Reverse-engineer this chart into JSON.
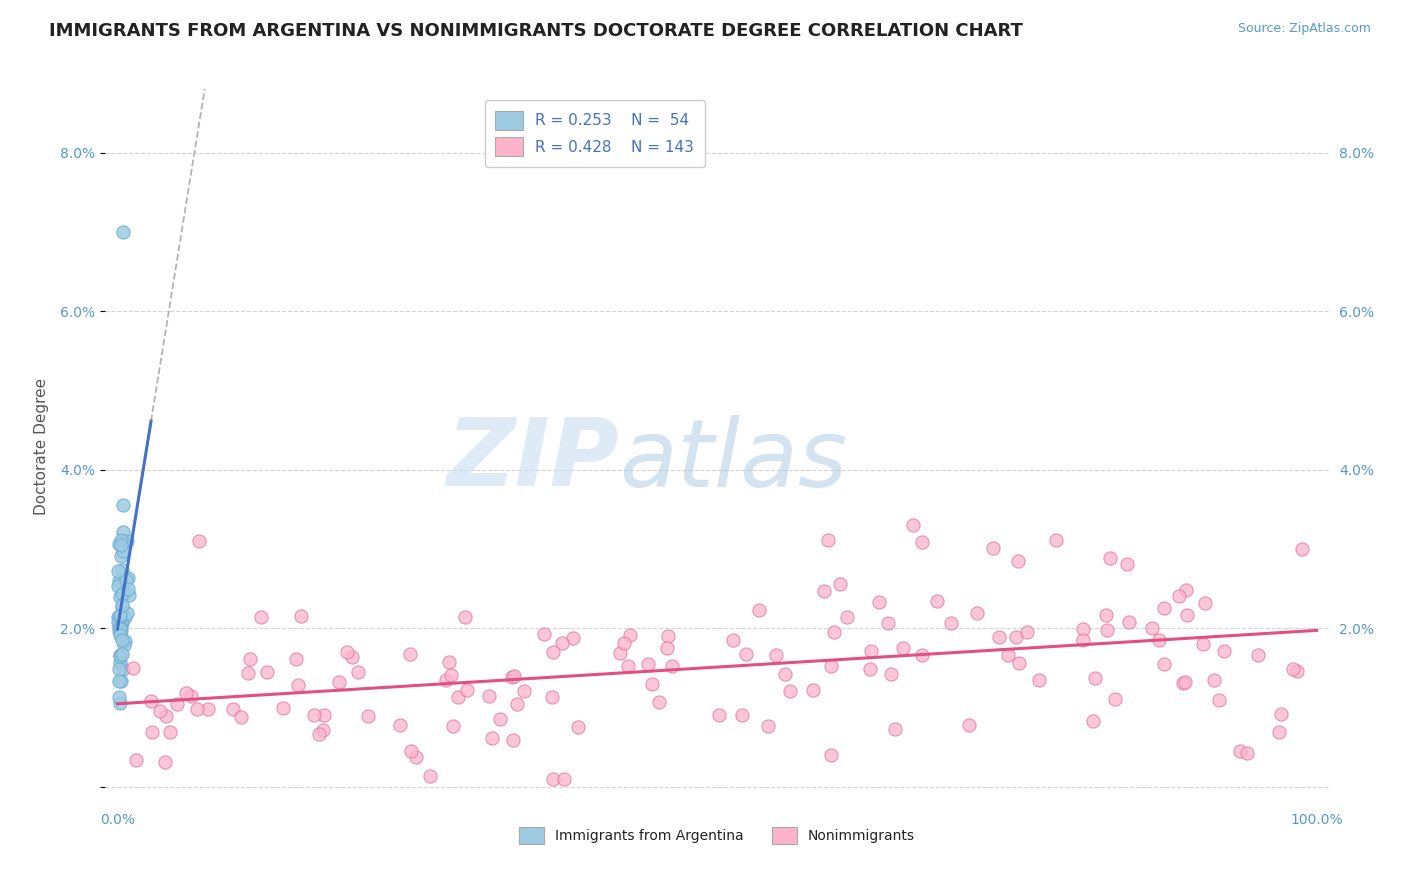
{
  "title": "IMMIGRANTS FROM ARGENTINA VS NONIMMIGRANTS DOCTORATE DEGREE CORRELATION CHART",
  "source_text": "Source: ZipAtlas.com",
  "ylabel": "Doctorate Degree",
  "xlim": [
    -0.01,
    1.01
  ],
  "ylim": [
    -0.002,
    0.088
  ],
  "xticklabels_edge": [
    "0.0%",
    "100.0%"
  ],
  "xticks_edge": [
    0.0,
    1.0
  ],
  "yticklabels": [
    "",
    "2.0%",
    "4.0%",
    "6.0%",
    "8.0%"
  ],
  "yticks": [
    0.0,
    0.02,
    0.04,
    0.06,
    0.08
  ],
  "background_color": "#ffffff",
  "grid_color": "#d0d0d0",
  "watermark_text": "ZIPatlas",
  "legend_R1": "R = 0.253",
  "legend_N1": "N =  54",
  "legend_R2": "R = 0.428",
  "legend_N2": "N = 143",
  "color_blue": "#9ecae1",
  "color_blue_edge": "#6baed6",
  "color_pink": "#fbb4c9",
  "color_pink_edge": "#de77a5",
  "color_trend_blue": "#4472c4",
  "color_trend_pink": "#e05080",
  "color_trend_dash": "#aaaaaa",
  "title_fontsize": 13,
  "axis_label_fontsize": 11,
  "tick_fontsize": 10,
  "legend_fontsize": 11
}
